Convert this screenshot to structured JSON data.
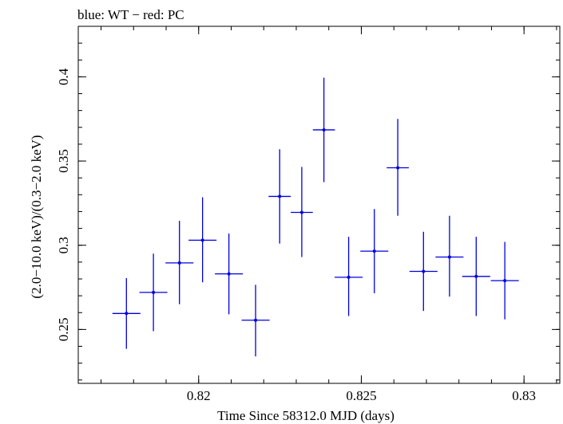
{
  "chart_data": {
    "type": "scatter",
    "title": "blue: WT − red: PC",
    "xlabel": "Time Since 58312.0 MJD (days)",
    "ylabel": "(2.0−10.0 keV)/(0.3−2.0 keV)",
    "xlim": [
      0.8163,
      0.8311
    ],
    "ylim": [
      0.218,
      0.43
    ],
    "x_ticks": [
      {
        "value": 0.82,
        "label": "0.82"
      },
      {
        "value": 0.825,
        "label": "0.825"
      },
      {
        "value": 0.83,
        "label": "0.83"
      }
    ],
    "y_ticks": [
      {
        "value": 0.25,
        "label": "0.25"
      },
      {
        "value": 0.3,
        "label": "0.3"
      },
      {
        "value": 0.35,
        "label": "0.35"
      },
      {
        "value": 0.4,
        "label": "0.4"
      }
    ],
    "x_minor_step": 0.001,
    "y_minor_step": 0.01,
    "color": "#0000e0",
    "series": [
      {
        "name": "WT",
        "points": [
          {
            "x": 0.81778,
            "y": 0.2595,
            "xerr": 0.00043,
            "ylo": 0.2385,
            "yhi": 0.2805
          },
          {
            "x": 0.81861,
            "y": 0.272,
            "xerr": 0.00043,
            "ylo": 0.249,
            "yhi": 0.295
          },
          {
            "x": 0.81941,
            "y": 0.2895,
            "xerr": 0.00043,
            "ylo": 0.265,
            "yhi": 0.3145
          },
          {
            "x": 0.82012,
            "y": 0.303,
            "xerr": 0.00043,
            "ylo": 0.278,
            "yhi": 0.3285
          },
          {
            "x": 0.82093,
            "y": 0.283,
            "xerr": 0.00043,
            "ylo": 0.259,
            "yhi": 0.307
          },
          {
            "x": 0.82175,
            "y": 0.2555,
            "xerr": 0.00043,
            "ylo": 0.234,
            "yhi": 0.2765
          },
          {
            "x": 0.82249,
            "y": 0.329,
            "xerr": 0.00034,
            "ylo": 0.301,
            "yhi": 0.357
          },
          {
            "x": 0.82317,
            "y": 0.3195,
            "xerr": 0.00034,
            "ylo": 0.293,
            "yhi": 0.3465
          },
          {
            "x": 0.82385,
            "y": 0.3685,
            "xerr": 0.00034,
            "ylo": 0.3375,
            "yhi": 0.3995
          },
          {
            "x": 0.82461,
            "y": 0.281,
            "xerr": 0.00043,
            "ylo": 0.258,
            "yhi": 0.305
          },
          {
            "x": 0.8254,
            "y": 0.2965,
            "xerr": 0.00043,
            "ylo": 0.2715,
            "yhi": 0.3215
          },
          {
            "x": 0.82612,
            "y": 0.346,
            "xerr": 0.00034,
            "ylo": 0.3175,
            "yhi": 0.375
          },
          {
            "x": 0.82691,
            "y": 0.2845,
            "xerr": 0.00043,
            "ylo": 0.261,
            "yhi": 0.308
          },
          {
            "x": 0.82771,
            "y": 0.293,
            "xerr": 0.00043,
            "ylo": 0.2695,
            "yhi": 0.3175
          },
          {
            "x": 0.82853,
            "y": 0.2815,
            "xerr": 0.00043,
            "ylo": 0.258,
            "yhi": 0.305
          },
          {
            "x": 0.82941,
            "y": 0.279,
            "xerr": 0.00043,
            "ylo": 0.256,
            "yhi": 0.302
          }
        ]
      }
    ]
  }
}
